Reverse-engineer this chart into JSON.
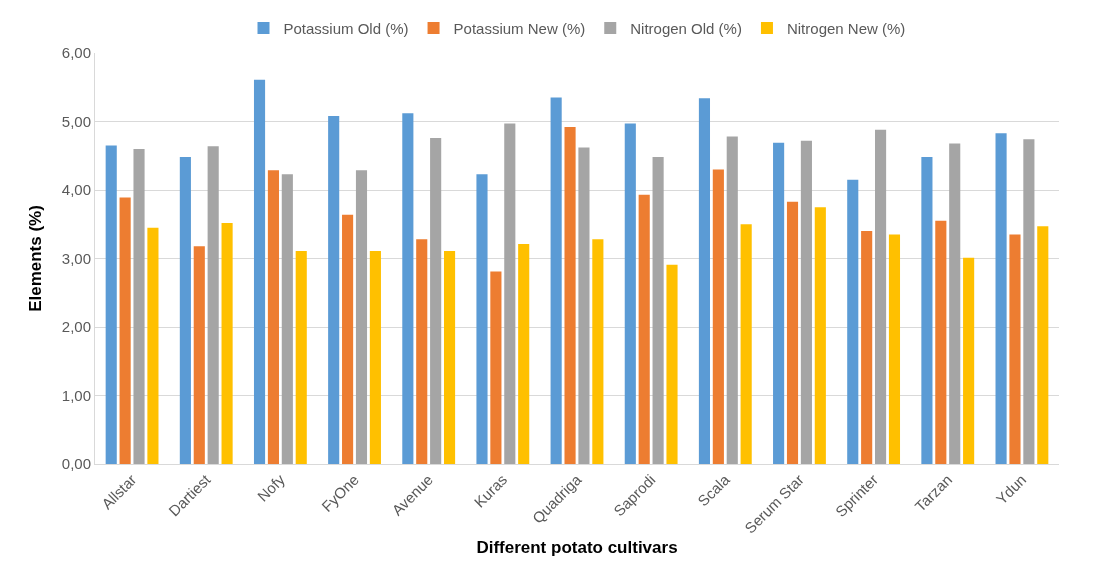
{
  "chart_data": {
    "type": "bar",
    "xlabel": "Different potato cultivars",
    "ylabel": "Elements (%)",
    "categories": [
      "Allstar",
      "Dartiest",
      "Nofy",
      "FyOne",
      "Avenue",
      "Kuras",
      "Quadriga",
      "Saprodi",
      "Scala",
      "Serum Star",
      "Sprinter",
      "Tarzan",
      "Ydun"
    ],
    "series": [
      {
        "name": "Potassium Old (%)",
        "color": "#5b9bd5",
        "values": [
          4.65,
          4.48,
          5.61,
          5.08,
          5.12,
          4.23,
          5.35,
          4.97,
          5.34,
          4.69,
          4.15,
          4.48,
          4.83
        ]
      },
      {
        "name": "Potassium New (%)",
        "color": "#ed7d31",
        "values": [
          3.89,
          3.18,
          4.29,
          3.64,
          3.28,
          2.81,
          4.92,
          3.93,
          4.3,
          3.83,
          3.4,
          3.55,
          3.35
        ]
      },
      {
        "name": "Nitrogen Old (%)",
        "color": "#a5a5a5",
        "values": [
          4.6,
          4.64,
          4.23,
          4.29,
          4.76,
          4.97,
          4.62,
          4.48,
          4.78,
          4.72,
          4.88,
          4.68,
          4.74
        ]
      },
      {
        "name": "Nitrogen New (%)",
        "color": "#ffc000",
        "values": [
          3.45,
          3.52,
          3.11,
          3.11,
          3.11,
          3.21,
          3.28,
          2.91,
          3.5,
          3.75,
          3.35,
          3.01,
          3.47
        ]
      }
    ],
    "ylim": [
      0,
      6
    ],
    "yticks": [
      {
        "value": 0,
        "label": "0,00"
      },
      {
        "value": 1,
        "label": "1,00"
      },
      {
        "value": 2,
        "label": "2,00"
      },
      {
        "value": 3,
        "label": "3,00"
      },
      {
        "value": 4,
        "label": "4,00"
      },
      {
        "value": 5,
        "label": "5,00"
      },
      {
        "value": 6,
        "label": "6,00"
      }
    ],
    "grid": "y",
    "legend": "top"
  }
}
